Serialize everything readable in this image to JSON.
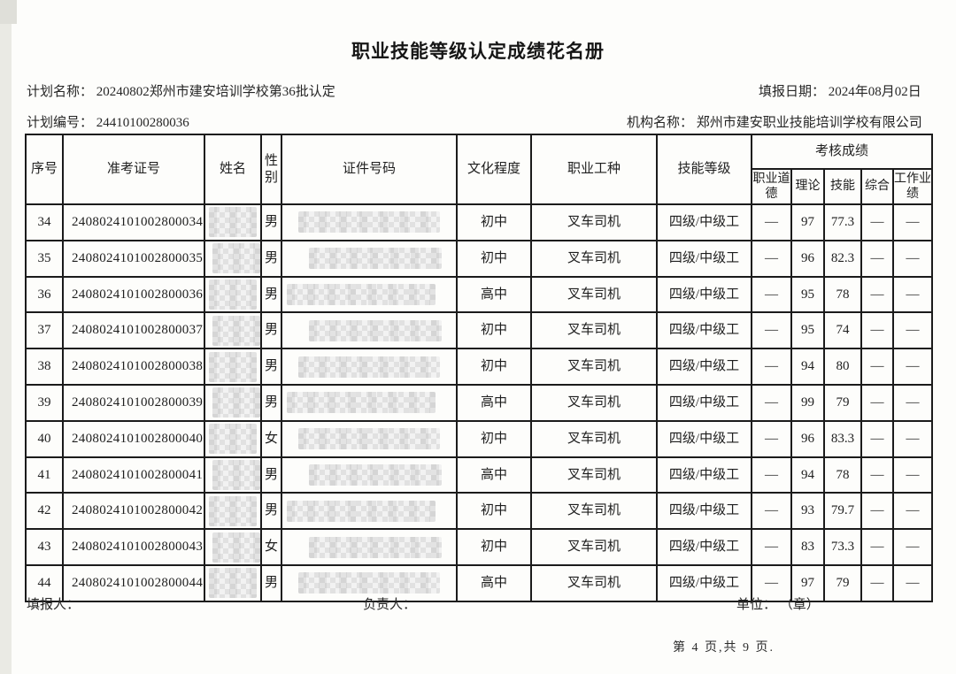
{
  "page": {
    "title": "职业技能等级认定成绩花名册",
    "plan_name": "计划名称： 20240802郑州市建安培训学校第36批认定",
    "report_date": "填报日期： 2024年08月02日",
    "plan_no": "计划编号： 24410100280036",
    "org_name": "机构名称： 郑州市建安职业技能培训学校有限公司"
  },
  "table": {
    "headers": {
      "seq": "序号",
      "ticket": "准考证号",
      "name": "姓名",
      "gender": "性别",
      "id_number": "证件号码",
      "education": "文化程度",
      "occupation": "职业工种",
      "skill_level": "技能等级",
      "scores_group": "考核成绩",
      "score_ethics": "职业道德",
      "score_theory": "理论",
      "score_skill": "技能",
      "score_comprehensive": "综合",
      "score_work": "工作业绩"
    },
    "rows": [
      {
        "seq": "34",
        "ticket": "2408024101002800034",
        "gender": "男",
        "education": "初中",
        "occupation": "叉车司机",
        "skill_level": "四级/中级工",
        "scores": {
          "ethics": "—",
          "theory": "97",
          "skill": "77.3",
          "comprehensive": "—",
          "work": "—"
        }
      },
      {
        "seq": "35",
        "ticket": "2408024101002800035",
        "gender": "男",
        "education": "初中",
        "occupation": "叉车司机",
        "skill_level": "四级/中级工",
        "scores": {
          "ethics": "—",
          "theory": "96",
          "skill": "82.3",
          "comprehensive": "—",
          "work": "—"
        }
      },
      {
        "seq": "36",
        "ticket": "2408024101002800036",
        "gender": "男",
        "education": "高中",
        "occupation": "叉车司机",
        "skill_level": "四级/中级工",
        "scores": {
          "ethics": "—",
          "theory": "95",
          "skill": "78",
          "comprehensive": "—",
          "work": "—"
        }
      },
      {
        "seq": "37",
        "ticket": "2408024101002800037",
        "gender": "男",
        "education": "初中",
        "occupation": "叉车司机",
        "skill_level": "四级/中级工",
        "scores": {
          "ethics": "—",
          "theory": "95",
          "skill": "74",
          "comprehensive": "—",
          "work": "—"
        }
      },
      {
        "seq": "38",
        "ticket": "2408024101002800038",
        "gender": "男",
        "education": "初中",
        "occupation": "叉车司机",
        "skill_level": "四级/中级工",
        "scores": {
          "ethics": "—",
          "theory": "94",
          "skill": "80",
          "comprehensive": "—",
          "work": "—"
        }
      },
      {
        "seq": "39",
        "ticket": "2408024101002800039",
        "gender": "男",
        "education": "高中",
        "occupation": "叉车司机",
        "skill_level": "四级/中级工",
        "scores": {
          "ethics": "—",
          "theory": "99",
          "skill": "79",
          "comprehensive": "—",
          "work": "—"
        }
      },
      {
        "seq": "40",
        "ticket": "2408024101002800040",
        "gender": "女",
        "education": "初中",
        "occupation": "叉车司机",
        "skill_level": "四级/中级工",
        "scores": {
          "ethics": "—",
          "theory": "96",
          "skill": "83.3",
          "comprehensive": "—",
          "work": "—"
        }
      },
      {
        "seq": "41",
        "ticket": "2408024101002800041",
        "gender": "男",
        "education": "高中",
        "occupation": "叉车司机",
        "skill_level": "四级/中级工",
        "scores": {
          "ethics": "—",
          "theory": "94",
          "skill": "78",
          "comprehensive": "—",
          "work": "—"
        }
      },
      {
        "seq": "42",
        "ticket": "2408024101002800042",
        "gender": "男",
        "education": "初中",
        "occupation": "叉车司机",
        "skill_level": "四级/中级工",
        "scores": {
          "ethics": "—",
          "theory": "93",
          "skill": "79.7",
          "comprehensive": "—",
          "work": "—"
        }
      },
      {
        "seq": "43",
        "ticket": "2408024101002800043",
        "gender": "女",
        "education": "初中",
        "occupation": "叉车司机",
        "skill_level": "四级/中级工",
        "scores": {
          "ethics": "—",
          "theory": "83",
          "skill": "73.3",
          "comprehensive": "—",
          "work": "—"
        }
      },
      {
        "seq": "44",
        "ticket": "2408024101002800044",
        "gender": "男",
        "education": "高中",
        "occupation": "叉车司机",
        "skill_level": "四级/中级工",
        "scores": {
          "ethics": "—",
          "theory": "97",
          "skill": "79",
          "comprehensive": "—",
          "work": "—"
        }
      }
    ]
  },
  "footer": {
    "filler_label": "填报人：",
    "manager_label": "负责人：",
    "unit_label": "单位： （章）",
    "page_info": "第 4 页,共 9 页."
  }
}
